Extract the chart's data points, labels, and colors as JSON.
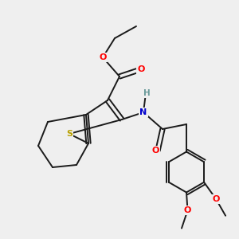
{
  "background_color": "#efefef",
  "bond_color": "#1a1a1a",
  "atom_colors": {
    "S": "#b8a000",
    "O": "#ff0000",
    "N": "#0000cc",
    "H": "#6a9a9a",
    "C": "#1a1a1a"
  },
  "figsize": [
    3.0,
    3.0
  ],
  "dpi": 100,
  "lw": 1.4,
  "doff": 0.09
}
